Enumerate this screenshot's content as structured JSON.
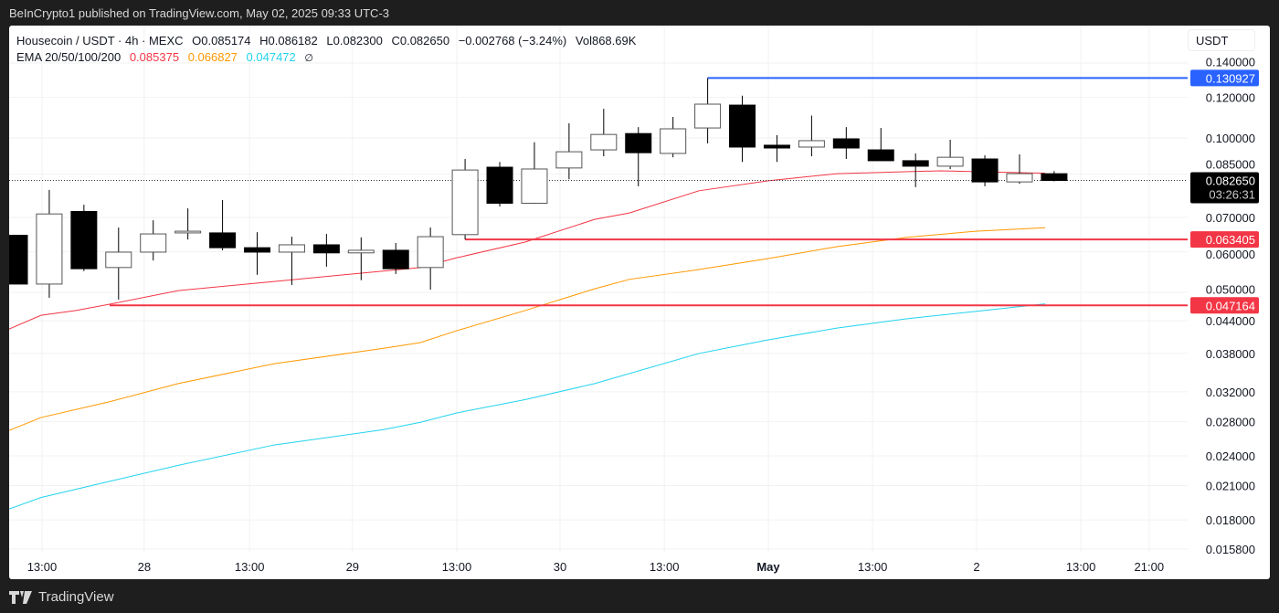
{
  "publisher_line": "BeInCrypto1 published on TradingView.com, May 02, 2025 09:33 UTC-3",
  "footer": {
    "brand": "TradingView",
    "logo_icon": "tradingview-logo-icon"
  },
  "legend": {
    "symbol": "Housecoin / USDT · 4h · MEXC",
    "open": "O0.085174",
    "high": "H0.086182",
    "low": "L0.082300",
    "close": "C0.082650",
    "change": "−0.002768 (−3.24%)",
    "volume": "Vol868.69K",
    "ema_label": "EMA 20/50/100/200",
    "ema20": "0.085375",
    "ema50": "0.066827",
    "ema100": "0.047472",
    "ema200_icon": "∅"
  },
  "currency": "USDT",
  "colors": {
    "ema20": "#f23645",
    "ema50": "#ff9800",
    "ema100": "#22d3ee",
    "blue_level": "#2962ff",
    "red_level": "#f23645",
    "up": "#ffffff",
    "down": "#000000"
  },
  "chart_data": {
    "type": "candlestick",
    "scale": "log",
    "ylim": [
      0.0152,
      0.148
    ],
    "grid": true,
    "y_ticks": [
      "0.140000",
      "0.120000",
      "0.100000",
      "0.085000",
      "0.070000",
      "0.060000",
      "0.050000",
      "0.044000",
      "0.038000",
      "0.032000",
      "0.028000",
      "0.024000",
      "0.021000",
      "0.018000",
      "0.015800"
    ],
    "x_ticks": [
      "13:00",
      "28",
      "13:00",
      "29",
      "13:00",
      "30",
      "13:00",
      "May",
      "13:00",
      "2",
      "13:00",
      "21:00"
    ],
    "candles": [
      {
        "o": 0.0646,
        "h": 0.0646,
        "l": 0.0519,
        "c": 0.0519
      },
      {
        "o": 0.0519,
        "h": 0.0792,
        "l": 0.0488,
        "c": 0.0711
      },
      {
        "o": 0.0719,
        "h": 0.0741,
        "l": 0.055,
        "c": 0.0556
      },
      {
        "o": 0.0559,
        "h": 0.0669,
        "l": 0.0484,
        "c": 0.0599
      },
      {
        "o": 0.0599,
        "h": 0.0691,
        "l": 0.0577,
        "c": 0.065
      },
      {
        "o": 0.0653,
        "h": 0.0729,
        "l": 0.0634,
        "c": 0.0658
      },
      {
        "o": 0.0653,
        "h": 0.0757,
        "l": 0.0604,
        "c": 0.0611
      },
      {
        "o": 0.0611,
        "h": 0.0655,
        "l": 0.0541,
        "c": 0.0599
      },
      {
        "o": 0.0599,
        "h": 0.0642,
        "l": 0.0517,
        "c": 0.0619
      },
      {
        "o": 0.0619,
        "h": 0.065,
        "l": 0.0561,
        "c": 0.0597
      },
      {
        "o": 0.0597,
        "h": 0.064,
        "l": 0.0528,
        "c": 0.0604
      },
      {
        "o": 0.0604,
        "h": 0.0624,
        "l": 0.0543,
        "c": 0.0556
      },
      {
        "o": 0.0559,
        "h": 0.0669,
        "l": 0.0506,
        "c": 0.0642
      },
      {
        "o": 0.0648,
        "h": 0.091,
        "l": 0.0634,
        "c": 0.0866
      },
      {
        "o": 0.0877,
        "h": 0.0898,
        "l": 0.0735,
        "c": 0.0746
      },
      {
        "o": 0.0746,
        "h": 0.0981,
        "l": 0.0744,
        "c": 0.087
      },
      {
        "o": 0.0874,
        "h": 0.1068,
        "l": 0.0831,
        "c": 0.094
      },
      {
        "o": 0.0948,
        "h": 0.114,
        "l": 0.0921,
        "c": 0.1016
      },
      {
        "o": 0.102,
        "h": 0.105,
        "l": 0.0805,
        "c": 0.0936
      },
      {
        "o": 0.0933,
        "h": 0.1099,
        "l": 0.0917,
        "c": 0.1042
      },
      {
        "o": 0.1046,
        "h": 0.130927,
        "l": 0.0976,
        "c": 0.1164
      },
      {
        "o": 0.1159,
        "h": 0.1209,
        "l": 0.0898,
        "c": 0.096
      },
      {
        "o": 0.0968,
        "h": 0.1013,
        "l": 0.0898,
        "c": 0.0956
      },
      {
        "o": 0.096,
        "h": 0.1106,
        "l": 0.0921,
        "c": 0.0988
      },
      {
        "o": 0.0996,
        "h": 0.105,
        "l": 0.091,
        "c": 0.0956
      },
      {
        "o": 0.0948,
        "h": 0.1046,
        "l": 0.0903,
        "c": 0.0903
      },
      {
        "o": 0.0903,
        "h": 0.0933,
        "l": 0.0802,
        "c": 0.0881
      },
      {
        "o": 0.0881,
        "h": 0.0992,
        "l": 0.087,
        "c": 0.0917
      },
      {
        "o": 0.091,
        "h": 0.0925,
        "l": 0.0805,
        "c": 0.0821
      },
      {
        "o": 0.0821,
        "h": 0.0929,
        "l": 0.0814,
        "c": 0.0852
      },
      {
        "o": 0.085174,
        "h": 0.086182,
        "l": 0.0823,
        "c": 0.08265
      }
    ],
    "ema_series": [
      {
        "name": "EMA 20",
        "color": "#f23645",
        "points": [
          [
            -0.16,
            0.0424
          ],
          [
            0.76,
            0.0451
          ],
          [
            1.77,
            0.0461
          ],
          [
            2.74,
            0.0474
          ],
          [
            4.72,
            0.0504
          ],
          [
            7.49,
            0.0525
          ],
          [
            11.71,
            0.0559
          ],
          [
            12.76,
            0.0584
          ],
          [
            14.74,
            0.0627
          ],
          [
            16.74,
            0.0694
          ],
          [
            17.74,
            0.0714
          ],
          [
            19.75,
            0.0789
          ],
          [
            21.75,
            0.0825
          ],
          [
            23.73,
            0.0852
          ],
          [
            26.73,
            0.0863
          ],
          [
            29.74,
            0.085375
          ]
        ]
      },
      {
        "name": "EMA 50",
        "color": "#ff9800",
        "points": [
          [
            -0.16,
            0.0269
          ],
          [
            0.76,
            0.0285
          ],
          [
            2.74,
            0.0306
          ],
          [
            4.72,
            0.0332
          ],
          [
            7.49,
            0.0363
          ],
          [
            10.65,
            0.0389
          ],
          [
            11.71,
            0.0399
          ],
          [
            12.76,
            0.0421
          ],
          [
            14.74,
            0.0461
          ],
          [
            16.74,
            0.0508
          ],
          [
            17.74,
            0.053
          ],
          [
            19.75,
            0.0554
          ],
          [
            21.75,
            0.0582
          ],
          [
            23.73,
            0.0614
          ],
          [
            25.73,
            0.064
          ],
          [
            27.73,
            0.0658
          ],
          [
            29.74,
            0.066827
          ]
        ]
      },
      {
        "name": "EMA 100",
        "color": "#22d3ee",
        "points": [
          [
            -0.16,
            0.0189
          ],
          [
            0.76,
            0.0199
          ],
          [
            2.74,
            0.0214
          ],
          [
            4.72,
            0.023
          ],
          [
            7.49,
            0.0252
          ],
          [
            10.65,
            0.027
          ],
          [
            11.71,
            0.0279
          ],
          [
            12.76,
            0.0291
          ],
          [
            14.74,
            0.0309
          ],
          [
            16.74,
            0.0332
          ],
          [
            19.75,
            0.038
          ],
          [
            21.75,
            0.0404
          ],
          [
            23.73,
            0.0426
          ],
          [
            25.73,
            0.0444
          ],
          [
            27.73,
            0.0459
          ],
          [
            29.74,
            0.047472
          ]
        ]
      }
    ],
    "levels": [
      {
        "value": 0.130927,
        "label": "0.130927",
        "color": "#2962ff",
        "from_candle": 20
      },
      {
        "value": 0.063405,
        "label": "0.063405",
        "color": "#f23645",
        "from_candle": 13
      },
      {
        "value": 0.047164,
        "label": "0.047164",
        "color": "#f23645",
        "from_candle": 2.74
      }
    ],
    "last_price": {
      "value": 0.08265,
      "label": "0.082650",
      "countdown": "03:26:31"
    }
  }
}
